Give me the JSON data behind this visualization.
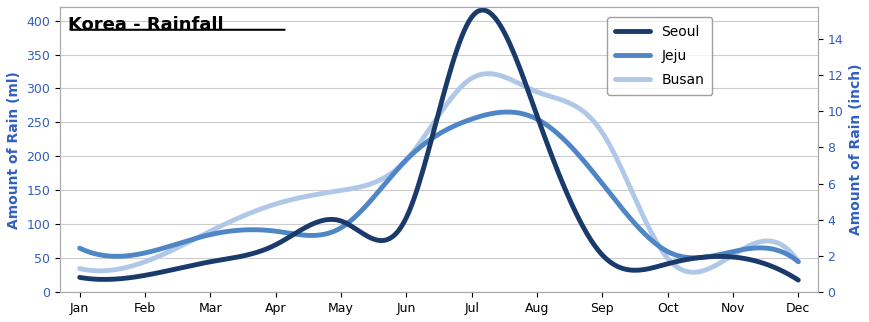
{
  "months": [
    "Jan",
    "Feb",
    "Mar",
    "Apr",
    "May",
    "Jun",
    "Jul",
    "Aug",
    "Sep",
    "Oct",
    "Nov",
    "Dec"
  ],
  "seoul": [
    22,
    25,
    45,
    70,
    105,
    110,
    405,
    260,
    55,
    42,
    52,
    18
  ],
  "jeju": [
    65,
    58,
    85,
    90,
    95,
    195,
    255,
    255,
    160,
    60,
    60,
    45
  ],
  "busan": [
    35,
    45,
    90,
    130,
    150,
    195,
    315,
    295,
    235,
    50,
    55,
    45
  ],
  "title": "Korea - Rainfall",
  "ylabel_left": "Amount of Rain (ml)",
  "ylabel_right": "Amount of Rain (inch)",
  "ylim_left": [
    0,
    420
  ],
  "ylim_right": [
    0,
    15.75
  ],
  "yticks_left": [
    0,
    50,
    100,
    150,
    200,
    250,
    300,
    350,
    400
  ],
  "yticks_right": [
    0,
    2,
    4,
    6,
    8,
    10,
    12,
    14
  ],
  "color_seoul": "#1a3a6b",
  "color_jeju": "#4f86c6",
  "color_busan": "#b0c8e8",
  "linewidth_seoul": 3.5,
  "linewidth_jeju": 3.5,
  "linewidth_busan": 3.5,
  "bg_color": "#ffffff",
  "label_color": "#3060c0",
  "legend_labels": [
    "Seoul",
    "Jeju",
    "Busan"
  ]
}
